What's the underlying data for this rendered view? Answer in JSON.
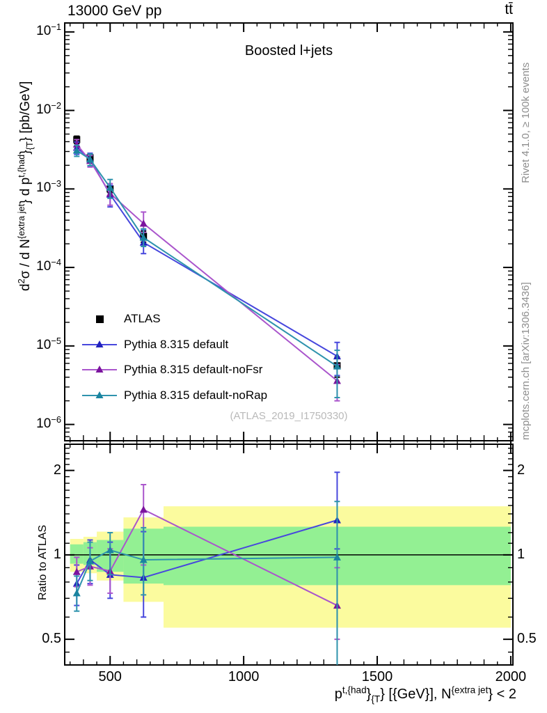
{
  "header": {
    "left": "13000 GeV pp",
    "right": "tt̄"
  },
  "panel_title": "Boosted l+jets",
  "watermark": "(ATLAS_2019_I1750330)",
  "side_notes": {
    "top": "Rivet 4.1.0, ≥ 100k events",
    "bottom": "mcplots.cern.ch [arXiv:1306.3436]"
  },
  "axis_labels": {
    "y_main_segments": [
      {
        "t": "d"
      },
      {
        "t": "2",
        "s": "sup"
      },
      {
        "t": "σ / d N"
      },
      {
        "t": "{extra jet",
        "s": "sup"
      },
      {
        "t": "} d p"
      },
      {
        "t": "t,{had",
        "s": "sup"
      },
      {
        "t": "}"
      },
      {
        "t": "{T",
        "s": "sub"
      },
      {
        "t": "} [pb/GeV]"
      }
    ],
    "x_segments": [
      {
        "t": "p"
      },
      {
        "t": "t,{had",
        "s": "sup"
      },
      {
        "t": "}"
      },
      {
        "t": "{T",
        "s": "sub"
      },
      {
        "t": "} [{GeV}], N"
      },
      {
        "t": "{extra jet",
        "s": "sup"
      },
      {
        "t": "} < 2"
      }
    ],
    "y_ratio": "Ratio to ATLAS"
  },
  "legend": {
    "entries": [
      {
        "label": "ATLAS",
        "marker": "square",
        "line_color": "#000000",
        "marker_color": "#000000"
      },
      {
        "label": "Pythia 8.315 default",
        "marker": "triangle",
        "line_color": "#4747dd",
        "marker_color": "#2121bd"
      },
      {
        "label": "Pythia 8.315 default-noFsr",
        "marker": "triangle",
        "line_color": "#aa55cc",
        "marker_color": "#7b149e"
      },
      {
        "label": "Pythia 8.315 default-noRap",
        "marker": "triangle",
        "line_color": "#2e93ad",
        "marker_color": "#1b84a0"
      }
    ]
  },
  "chart_data": {
    "type": "line",
    "title": "Boosted l+jets",
    "xlabel": "pT(t,had) [GeV], N(extra jet) < 2",
    "ylabel_main": "d2sigma / dN(extra jet) dpT(t,had) [pb/GeV]",
    "ylabel_ratio": "Ratio to ATLAS",
    "x_axis": {
      "min": 330,
      "max": 2008,
      "major_ticks": [
        500,
        1000,
        1500,
        2000
      ],
      "medium_step": 100,
      "minor_step": 50
    },
    "y_main_axis": {
      "scale": "log10",
      "min": 6.2e-07,
      "max": 0.13,
      "decade_exponents": [
        -1,
        -2,
        -3,
        -4,
        -5,
        -6
      ]
    },
    "y_ratio_axis": {
      "scale": "log",
      "min": 0.405,
      "max": 2.48,
      "major_ticks": [
        2,
        1,
        0.5
      ],
      "minor_ticks": [
        0.45,
        0.5,
        0.6,
        0.7,
        0.8,
        0.9,
        1.1,
        1.2,
        1.3,
        1.4,
        1.5,
        1.6,
        1.7,
        1.8,
        1.9,
        2.1,
        2.2,
        2.3,
        2.4
      ]
    },
    "bin_edges": [
      350,
      400,
      450,
      550,
      700,
      2000
    ],
    "x_centers": [
      375,
      425,
      500,
      625,
      1350
    ],
    "series": [
      {
        "name": "ATLAS",
        "marker": "square",
        "line": false,
        "line_color": "#000000",
        "marker_color": "#000000",
        "values": [
          0.00425,
          0.0025,
          0.001,
          0.00025,
          5.6e-06
        ],
        "errors": [
          [
            0.0038,
            0.0047
          ],
          [
            0.00222,
            0.00278
          ],
          [
            0.0009,
            0.0011
          ],
          [
            0.00021,
            0.00029
          ],
          [
            4e-06,
            7.2e-06
          ]
        ]
      },
      {
        "name": "Pythia 8.315 default",
        "marker": "triangle",
        "line": true,
        "line_color": "#4747dd",
        "marker_color": "#2121bd",
        "values": [
          0.00336,
          0.0024,
          0.00085,
          0.000208,
          7.4e-06
        ],
        "errors": [
          [
            0.00276,
            0.00396
          ],
          [
            0.00195,
            0.00285
          ],
          [
            0.00059,
            0.00111
          ],
          [
            0.00015,
            0.000303
          ],
          [
            4.2e-06,
            1.11e-05
          ]
        ],
        "ratio": [
          0.79,
          0.96,
          0.85,
          0.83,
          1.33
        ],
        "ratio_errors": [
          [
            0.66,
            0.92
          ],
          [
            0.79,
            1.13
          ],
          [
            0.7,
            1.11
          ],
          [
            0.6,
            1.21
          ],
          [
            1.05,
            1.97
          ]
        ]
      },
      {
        "name": "Pythia 8.315 default-noFsr",
        "marker": "triangle",
        "line": true,
        "line_color": "#aa55cc",
        "marker_color": "#7b149e",
        "values": [
          0.0037,
          0.00228,
          0.000875,
          0.000363,
          3.6e-06
        ],
        "errors": [
          [
            0.00315,
            0.00425
          ],
          [
            0.0019,
            0.00266
          ],
          [
            0.00062,
            0.00117
          ],
          [
            0.00028,
            0.000508
          ],
          [
            2e-06,
            5.8e-06
          ]
        ],
        "ratio": [
          0.87,
          0.91,
          0.875,
          1.45,
          0.66
        ],
        "ratio_errors": [
          [
            0.77,
            0.98
          ],
          [
            0.78,
            1.06
          ],
          [
            0.73,
            1.05
          ],
          [
            0.92,
            1.78
          ],
          [
            0.5,
            0.9
          ]
        ]
      },
      {
        "name": "Pythia 8.315 default-noRap",
        "marker": "triangle",
        "line": true,
        "line_color": "#2e93ad",
        "marker_color": "#1b84a0",
        "values": [
          0.0031,
          0.00238,
          0.00104,
          0.00024,
          5.5e-06
        ],
        "errors": [
          [
            0.0026,
            0.0036
          ],
          [
            0.00198,
            0.00278
          ],
          [
            0.00076,
            0.00132
          ],
          [
            0.000185,
            0.00031
          ],
          [
            2.2e-06,
            8.8e-06
          ]
        ],
        "ratio": [
          0.73,
          0.95,
          1.04,
          0.96,
          0.98
        ],
        "ratio_errors": [
          [
            0.63,
            0.84
          ],
          [
            0.81,
            1.11
          ],
          [
            0.85,
            1.2
          ],
          [
            0.72,
            1.25
          ],
          [
            0.38,
            1.55
          ]
        ]
      }
    ],
    "ratio_bands": {
      "yellow_color": "#fbfb9e",
      "green_color": "#93f093",
      "bins": [
        {
          "x": [
            350,
            400
          ],
          "yellow": [
            0.87,
            1.14
          ],
          "green": [
            0.93,
            1.09
          ]
        },
        {
          "x": [
            400,
            450
          ],
          "yellow": [
            0.86,
            1.16
          ],
          "green": [
            0.92,
            1.11
          ]
        },
        {
          "x": [
            450,
            550
          ],
          "yellow": [
            0.81,
            1.21
          ],
          "green": [
            0.87,
            1.13
          ]
        },
        {
          "x": [
            550,
            700
          ],
          "yellow": [
            0.68,
            1.36
          ],
          "green": [
            0.79,
            1.24
          ]
        },
        {
          "x": [
            700,
            2000
          ],
          "yellow": [
            0.55,
            1.49
          ],
          "green": [
            0.78,
            1.26
          ]
        }
      ],
      "reference_line": 1.0
    },
    "legend_position": "left-middle",
    "grid": false
  }
}
